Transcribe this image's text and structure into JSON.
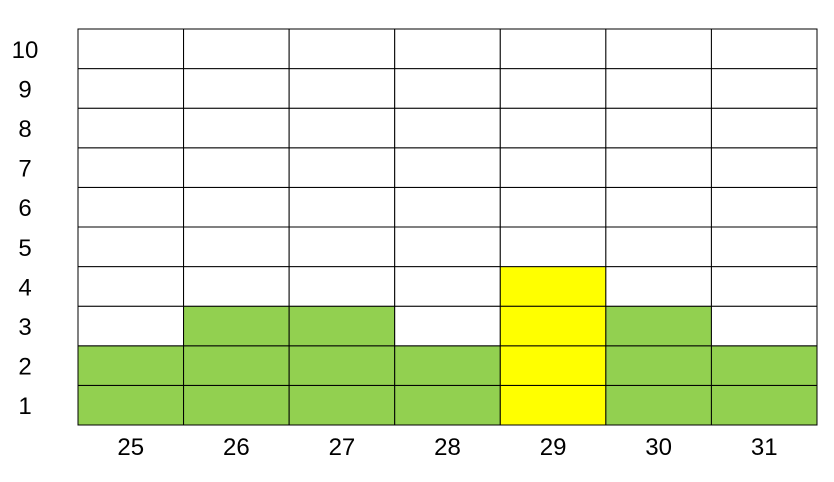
{
  "chart_data": {
    "type": "heatmap",
    "title": "",
    "xlabel": "",
    "ylabel": "",
    "categories": [
      "25",
      "26",
      "27",
      "28",
      "29",
      "30",
      "31"
    ],
    "y_levels": [
      "1",
      "2",
      "3",
      "4",
      "5",
      "6",
      "7",
      "8",
      "9",
      "10"
    ],
    "values": [
      2,
      3,
      3,
      2,
      4,
      3,
      2
    ],
    "highlight_category": "29",
    "ylim": [
      0,
      10
    ],
    "grid": true,
    "legend": "none",
    "colors": {
      "filled": "#92d050",
      "highlight": "#ffff00",
      "empty": "#ffffff",
      "grid": "#000000"
    }
  }
}
